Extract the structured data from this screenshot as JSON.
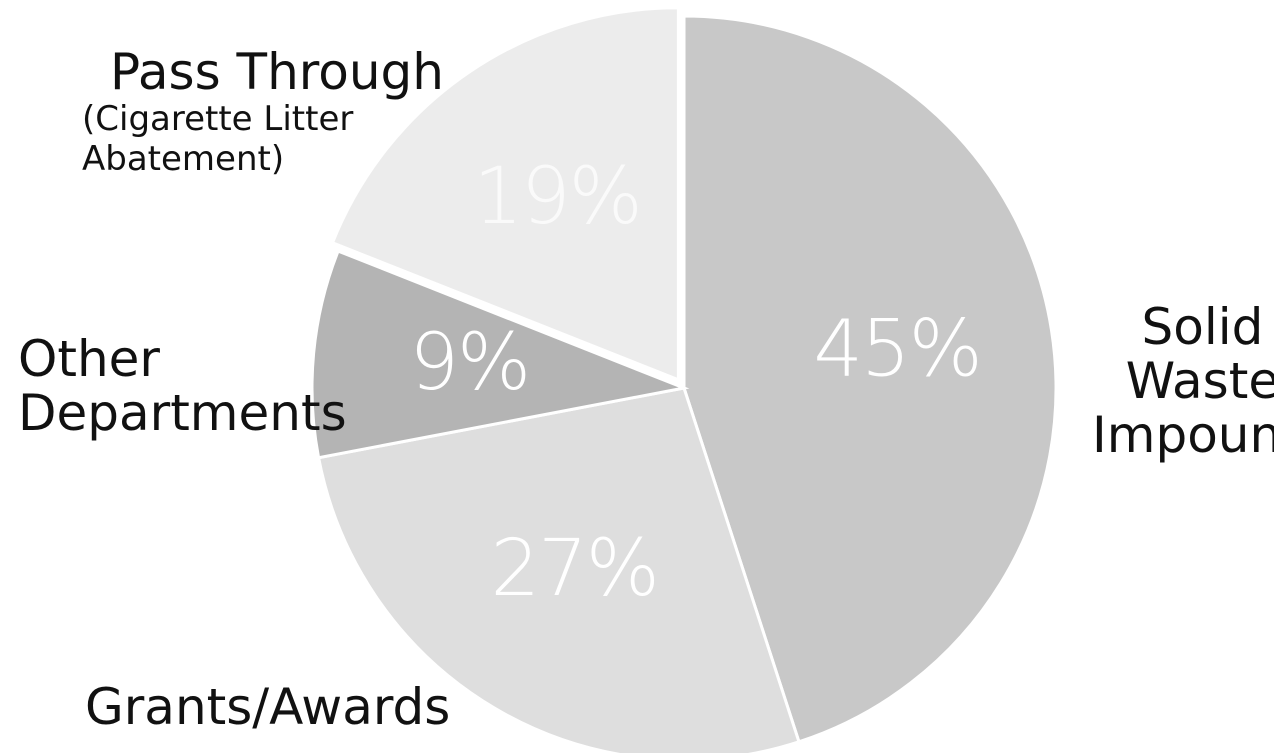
{
  "chart_data": {
    "type": "pie",
    "slices": [
      {
        "label": "Solid Waste Impound",
        "label_lines": [
          "Solid",
          "Waste",
          "Impound"
        ],
        "value": 45,
        "value_label": "45%",
        "color": "#c8c8c8"
      },
      {
        "label": "Grants/Awards",
        "label_lines": [
          "Grants/Awards"
        ],
        "value": 27,
        "value_label": "27%",
        "color": "#dedede"
      },
      {
        "label": "Other Departments",
        "label_lines": [
          "Other",
          "Departments"
        ],
        "value": 9,
        "value_label": "9%",
        "color": "#b4b4b4"
      },
      {
        "label": "Pass Through (Cigarette Litter Abatement)",
        "label_lines": [
          "Pass Through"
        ],
        "sublabel_lines": [
          "(Cigarette Litter",
          "Abatement)"
        ],
        "value": 19,
        "value_label": "19%",
        "color": "#ececec"
      }
    ],
    "start_angle": "top",
    "direction": "clockwise",
    "legend": "none",
    "title": ""
  }
}
